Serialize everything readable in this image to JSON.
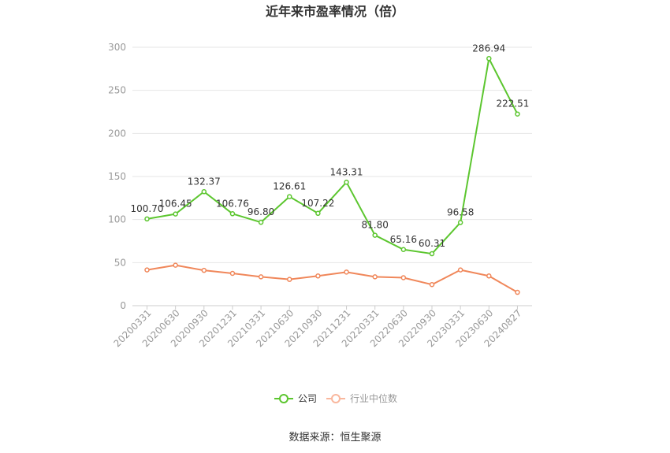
{
  "chart_data": {
    "type": "line",
    "title": "近年来市盈率情况（倍）",
    "categories": [
      "20200331",
      "20200630",
      "20200930",
      "20201231",
      "20210331",
      "20210630",
      "20210930",
      "20211231",
      "20220331",
      "20220630",
      "20220930",
      "20230331",
      "20230630",
      "20240827"
    ],
    "y_ticks": [
      "0",
      "50",
      "100",
      "150",
      "200",
      "250",
      "300"
    ],
    "ylim": [
      0,
      300
    ],
    "grid": true,
    "legend_position": "bottom",
    "series": [
      {
        "name": "公司",
        "color": "#5cc62f",
        "values": [
          100.7,
          106.45,
          132.37,
          106.76,
          96.8,
          126.61,
          107.22,
          143.31,
          81.8,
          65.16,
          60.31,
          96.58,
          286.94,
          222.51
        ],
        "labels": [
          "100.70",
          "106.45",
          "132.37",
          "106.76",
          "96.80",
          "126.61",
          "107.22",
          "143.31",
          "81.80",
          "65.16",
          "60.31",
          "96.58",
          "286.94",
          "222.51"
        ]
      },
      {
        "name": "行业中位数",
        "color": "#f0875a",
        "values": [
          41.5,
          47.0,
          41.0,
          37.5,
          33.5,
          30.5,
          34.5,
          39.0,
          33.5,
          32.5,
          24.5,
          41.5,
          34.5,
          15.5
        ]
      }
    ],
    "source": "数据来源：恒生聚源"
  }
}
